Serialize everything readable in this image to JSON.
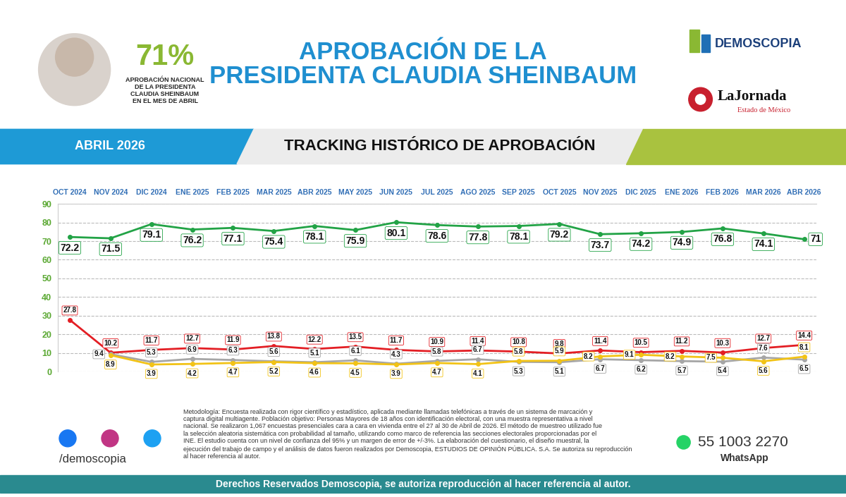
{
  "header": {
    "highlight_value": "71%",
    "highlight_text": "APROBACIÓN NACIONAL\nDE LA PRESIDENTA\nCLAUDIA SHEINBAUM\nEN EL MES DE ABRIL",
    "title": "APROBACIÓN DE LA\nPRESIDENTA CLAUDIA SHEINBAUM",
    "logo_1": "DEMOSCOPIA",
    "logo_2": "LaJornada",
    "logo_2_subtitle": "Estado de México"
  },
  "banner": {
    "period": "ABRIL 2026"
  },
  "chart_data": {
    "type": "line",
    "title": "TRACKING HISTÓRICO DE APROBACIÓN",
    "categories": [
      "OCT 2024",
      "NOV 2024",
      "DIC 2024",
      "ENE 2025",
      "FEB 2025",
      "MAR 2025",
      "ABR 2025",
      "MAY 2025",
      "JUN 2025",
      "JUL 2025",
      "AGO 2025",
      "SEP 2025",
      "OCT 2025",
      "NOV 2025",
      "DIC 2025",
      "ENE 2026",
      "FEB 2026",
      "MAR 2026",
      "ABR 2026"
    ],
    "series": [
      {
        "color": "#22a346",
        "values": [
          72.2,
          71.5,
          79.1,
          76.2,
          77.1,
          75.4,
          78.1,
          75.9,
          80.1,
          78.6,
          77.8,
          78.1,
          79.2,
          73.7,
          74.2,
          74.9,
          76.8,
          74.1,
          71
        ]
      },
      {
        "color": "#e31e24",
        "values": [
          27.8,
          10.2,
          11.7,
          12.7,
          11.9,
          13.8,
          12.2,
          13.5,
          11.7,
          10.9,
          11.4,
          10.8,
          9.8,
          11.4,
          10.5,
          11.2,
          10.3,
          12.7,
          14.4
        ]
      },
      {
        "color": "#a6a6a6",
        "values": [
          null,
          9.4,
          5.3,
          6.9,
          6.3,
          5.6,
          5.1,
          6.1,
          4.3,
          5.8,
          6.7,
          5.3,
          5.1,
          6.7,
          6.2,
          5.7,
          5.4,
          7.6,
          6.5
        ]
      },
      {
        "color": "#f2c316",
        "values": [
          null,
          8.9,
          3.9,
          4.2,
          4.7,
          5.2,
          4.6,
          4.5,
          3.9,
          4.7,
          4.1,
          5.8,
          5.9,
          8.2,
          9.1,
          8.2,
          7.5,
          5.6,
          8.1
        ]
      }
    ],
    "ylim": [
      0,
      90
    ],
    "yticks": [
      0,
      10,
      20,
      30,
      40,
      50,
      60,
      70,
      80,
      90
    ],
    "grid": true,
    "marker": "o",
    "data_labels": true
  },
  "methodology": "Metodología: Encuesta realizada con rigor científico y estadístico, aplicada mediante llamadas telefónicas a través de un sistema de marcación y captura digital multiagente. Población objetivo: Personas Mayores de 18 años con identificación electoral, con una muestra representativa a nivel nacional. Se realizaron 1,067 encuestas presenciales cara a cara en vivienda entre el 27 al 30 de Abril de 2026. El método de muestreo utilizado fue la selección aleatoria sistemática con probabilidad al tamaño, utilizando como marco de referencia las secciones electorales proporcionadas por el INE. El estudio cuenta con un nivel de confianza del 95% y un margen de error de +/-3%. La elaboración del cuestionario, el diseño muestral, la ejecución del trabajo de campo y el análisis de datos fueron realizados por Demoscopia, ESTUDIOS DE OPINIÓN PÚBLICA. S.A. Se autoriza su reproducción al hacer referencia al autor.",
  "social": {
    "handle": "/demoscopia",
    "phone": "55 1003 2270",
    "phone_app": "WhatsApp"
  },
  "footer": "Derechos Reservados Demoscopia, se autoriza reproducción al hacer referencia al autor."
}
